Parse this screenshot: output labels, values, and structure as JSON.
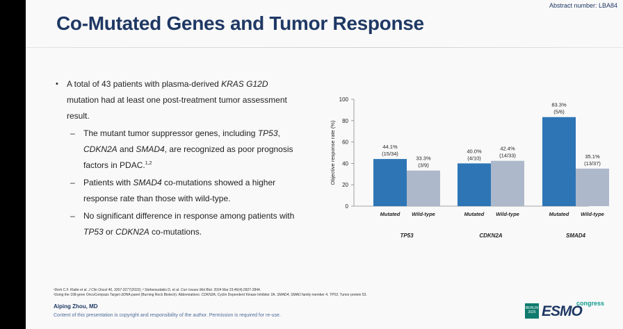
{
  "abstract_number": "Abstract number: LBA84",
  "title": "Co-Mutated Genes and Tumor Response",
  "bullet_main": {
    "p1": "A total of 43 patients with plasma-derived ",
    "p2": "KRAS G12D",
    "p3": " mutation had at least one post-treatment tumor assessment result."
  },
  "sub1": {
    "p1": "The mutant tumor suppressor genes, including ",
    "p2": "TP53",
    "p3": ", ",
    "p4": "CDKN2A",
    "p5": " and ",
    "p6": "SMAD4",
    "p7": ", are recognized as poor prognosis factors in PDAC.",
    "sup": "1,2"
  },
  "sub2": {
    "p1": "Patients with ",
    "p2": "SMAD4",
    "p3": " co-mutations showed a higher response rate than those with wild-type."
  },
  "sub3": {
    "p1": "No significant difference in response among patients with ",
    "p2": "TP53",
    "p3": " or ",
    "p4": "CDKN2A",
    "p5": " co-mutations."
  },
  "chart_data": {
    "type": "bar",
    "ylabel": "Objective response rate (%)",
    "ylim": [
      0,
      100
    ],
    "yticks": [
      "0",
      "20",
      "40",
      "60",
      "80",
      "100"
    ],
    "groups": [
      "TP53",
      "CDKN2A",
      "SMAD4"
    ],
    "series_labels": [
      "Mutated",
      "Wild-type"
    ],
    "colors": {
      "mutated": "#2e75b6",
      "wildtype": "#adb9ca"
    },
    "bars": [
      {
        "group": "TP53",
        "series": "Mutated",
        "value": 44.1,
        "pct": "44.1%",
        "frac": "(15/34)"
      },
      {
        "group": "TP53",
        "series": "Wild-type",
        "value": 33.3,
        "pct": "33.3%",
        "frac": "(3/9)"
      },
      {
        "group": "CDKN2A",
        "series": "Mutated",
        "value": 40.0,
        "pct": "40.0%",
        "frac": "(4/10)"
      },
      {
        "group": "CDKN2A",
        "series": "Wild-type",
        "value": 42.4,
        "pct": "42.4%",
        "frac": "(14/33)"
      },
      {
        "group": "SMAD4",
        "series": "Mutated",
        "value": 83.3,
        "pct": "83.3%",
        "frac": "(5/6)"
      },
      {
        "group": "SMAD4",
        "series": "Wild-type",
        "value": 35.1,
        "pct": "35.1%",
        "frac": "(13/37)"
      }
    ]
  },
  "footnote1": {
    "a": "¹Derk C.F. Klatte et al. ",
    "b": "J Clin Oncol",
    "c": " 40, 3267-3277(2022); ² Stefanoudakis D, et al. ",
    "d": "Curr Issues Mol Biol",
    "e": ". 2024 Mar 23;46(4):2827-2844."
  },
  "footnote2": {
    "a": "³Using the 168-gene OncoCompass Target ctDNA panel (Burning Rock Biotech). Abbreviations: ",
    "b": "CDKN2A",
    "c": ", Cyclin Dependent Kinase Inhibitor 2A. ",
    "d": "SMAD4",
    "e": ", SMAD family member 4. ",
    "f": "TP53",
    "g": ", Tumor protein 53."
  },
  "author": "Aiping Zhou, MD",
  "copyright": "Content of this presentation is copyright and responsibility of the author. Permission is required for re-use.",
  "logo": {
    "badge": "BERLIN 2025",
    "word": "ESMO",
    "congress": "congress"
  }
}
